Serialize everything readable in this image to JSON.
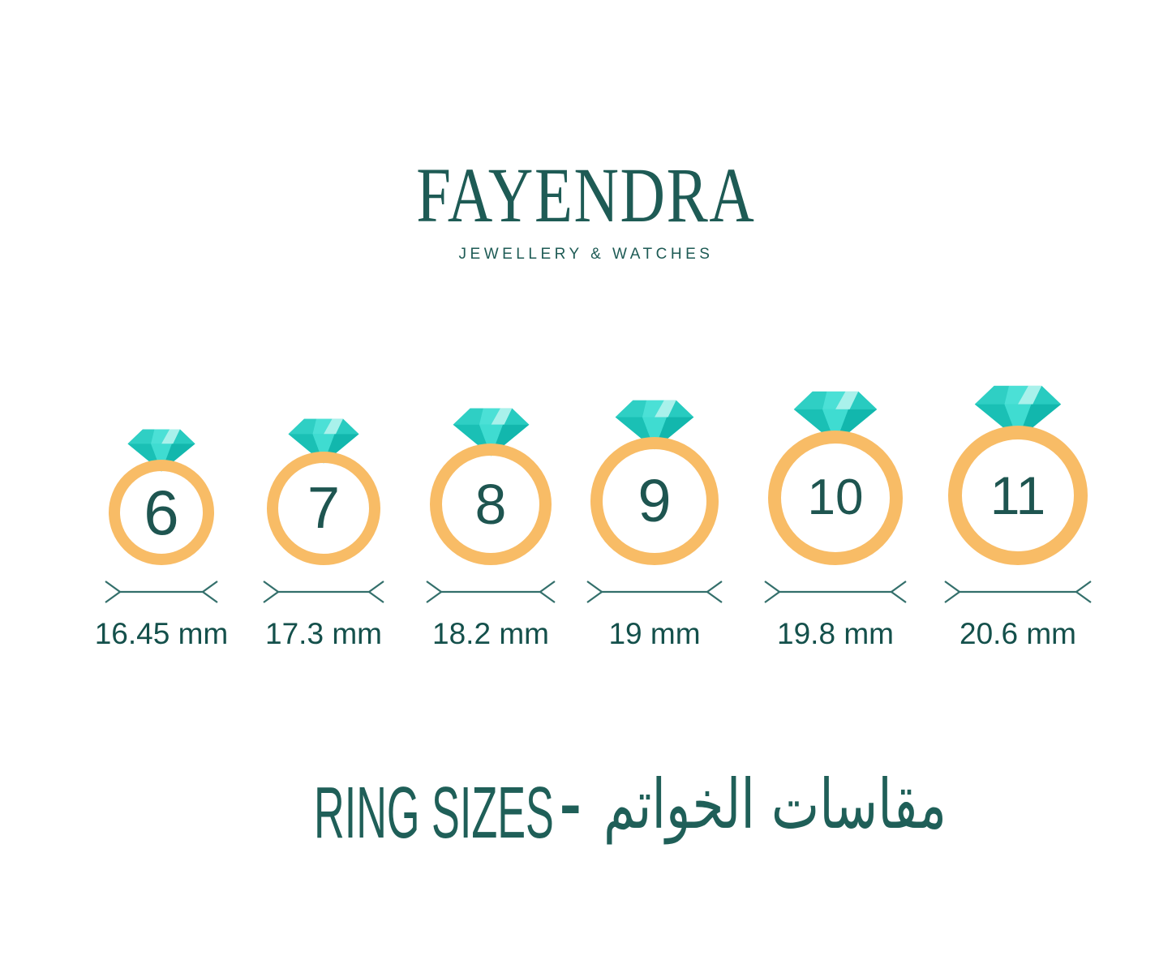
{
  "logo": {
    "brand": "FAYENDRA",
    "tagline": "JEWELLERY & WATCHES"
  },
  "rings": [
    {
      "size": "6",
      "diameter": "16.45 mm"
    },
    {
      "size": "7",
      "diameter": "17.3 mm"
    },
    {
      "size": "8",
      "diameter": "18.2 mm"
    },
    {
      "size": "9",
      "diameter": "19 mm"
    },
    {
      "size": "10",
      "diameter": "19.8 mm"
    },
    {
      "size": "11",
      "diameter": "20.6 mm"
    }
  ],
  "caption": {
    "english": "RING SIZES",
    "separator": "-",
    "arabic": "مقاسات الخواتم"
  },
  "colors": {
    "brand_text": "#1E5B55",
    "number_text": "#1E5550",
    "label_text": "#14504B",
    "caption_text": "#1F5F58",
    "measure_line": "#336F6B",
    "ring_band": "#F8BC66",
    "diamond_base": "#35D4C8",
    "diamond_crown_left": "#2FCFC4",
    "diamond_crown_center": "#4BE0D6",
    "diamond_crown_light": "#A9F1EB",
    "diamond_crown_right": "#28CBC0",
    "diamond_pavilion_left": "#1AC0B5",
    "diamond_pavilion_center": "#3FDCD1",
    "diamond_pavilion_right": "#12B7AD"
  }
}
